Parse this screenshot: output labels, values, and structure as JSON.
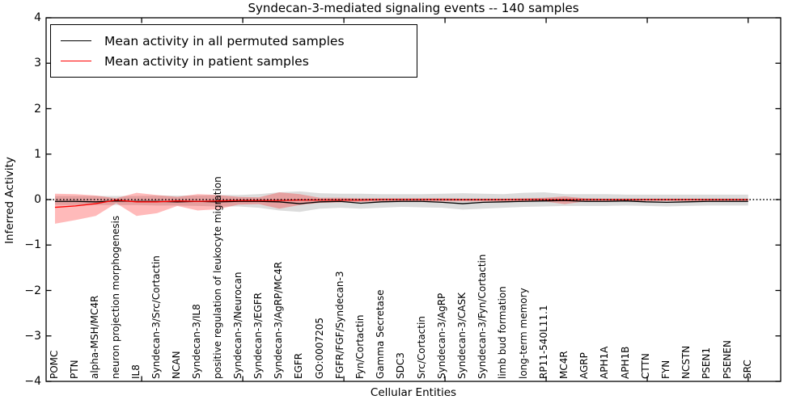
{
  "chart_data": {
    "type": "line",
    "title": "Syndecan-3-mediated signaling events -- 140 samples",
    "xlabel": "Cellular Entities",
    "ylabel": "Inferred Activity",
    "ylim": [
      -4,
      4
    ],
    "yticks": [
      4,
      3,
      2,
      1,
      0,
      -1,
      -2,
      -3,
      -4
    ],
    "grid": false,
    "legend_position": "upper-left",
    "categories": [
      "POMC",
      "PTN",
      "alpha-MSH/MC4R",
      "neuron projection morphogenesis",
      "IL8",
      "Syndecan-3/Src/Cortactin",
      "NCAN",
      "Syndecan-3/IL8",
      "positive regulation of leukocyte migration",
      "Syndecan-3/Neurocan",
      "Syndecan-3/EGFR",
      "Syndecan-3/AgRP/MC4R",
      "EGFR",
      "GO:0007205",
      "FGFR/FGF/Syndecan-3",
      "Fyn/Cortactin",
      "Gamma Secretase",
      "SDC3",
      "Src/Cortactin",
      "Syndecan-3/AgRP",
      "Syndecan-3/CASK",
      "Syndecan-3/Fyn/Cortactin",
      "limb bud formation",
      "long-term memory",
      "RP11-540L11.1",
      "MC4R",
      "AGRP",
      "APH1A",
      "APH1B",
      "CTTN",
      "FYN",
      "NCSTN",
      "PSEN1",
      "PSENEN",
      "SRC"
    ],
    "series": [
      {
        "name": "Mean activity in all permuted samples",
        "color": "#000000",
        "values": [
          -0.04,
          -0.04,
          -0.05,
          -0.03,
          -0.04,
          -0.04,
          -0.05,
          -0.04,
          -0.05,
          -0.04,
          -0.04,
          -0.05,
          -0.09,
          -0.05,
          -0.04,
          -0.08,
          -0.05,
          -0.04,
          -0.04,
          -0.06,
          -0.09,
          -0.06,
          -0.05,
          -0.04,
          -0.03,
          -0.02,
          -0.04,
          -0.04,
          -0.03,
          -0.05,
          -0.06,
          -0.05,
          -0.04,
          -0.04,
          -0.04
        ]
      },
      {
        "name": "Mean activity in patient samples",
        "color": "#ff0000",
        "values": [
          -0.17,
          -0.14,
          -0.09,
          -0.01,
          -0.05,
          -0.05,
          -0.03,
          -0.04,
          -0.03,
          -0.02,
          -0.02,
          -0.02,
          -0.01,
          -0.01,
          -0.01,
          -0.01,
          0,
          0,
          0,
          0,
          0,
          0,
          0,
          0,
          0,
          0,
          0,
          0,
          0,
          0,
          0,
          0,
          0,
          0,
          0
        ]
      }
    ],
    "bands": [
      {
        "name": "permuted-samples-spread",
        "color": "#808080",
        "opacity": 0.28,
        "upper": [
          0.08,
          0.08,
          0.08,
          0.08,
          0.08,
          0.09,
          0.09,
          0.09,
          0.1,
          0.1,
          0.12,
          0.16,
          0.18,
          0.14,
          0.13,
          0.13,
          0.12,
          0.12,
          0.12,
          0.13,
          0.14,
          0.13,
          0.12,
          0.15,
          0.16,
          0.12,
          0.12,
          0.12,
          0.11,
          0.11,
          0.11,
          0.11,
          0.11,
          0.11,
          0.11
        ],
        "lower": [
          -0.12,
          -0.12,
          -0.12,
          -0.12,
          -0.12,
          -0.13,
          -0.13,
          -0.14,
          -0.15,
          -0.15,
          -0.18,
          -0.24,
          -0.27,
          -0.2,
          -0.18,
          -0.2,
          -0.18,
          -0.16,
          -0.17,
          -0.18,
          -0.22,
          -0.2,
          -0.18,
          -0.16,
          -0.15,
          -0.14,
          -0.14,
          -0.14,
          -0.13,
          -0.14,
          -0.15,
          -0.14,
          -0.13,
          -0.13,
          -0.13
        ]
      },
      {
        "name": "patient-samples-spread",
        "color": "#ff0000",
        "opacity": 0.27,
        "upper": [
          0.13,
          0.12,
          0.09,
          0.03,
          0.15,
          0.1,
          0.06,
          0.12,
          0.1,
          0.06,
          0.05,
          0.16,
          0.12,
          0.04,
          0.04,
          0.03,
          0.03,
          0.03,
          0.03,
          0.03,
          0.02,
          0.02,
          0.02,
          0.03,
          0.04,
          0.07,
          0.03,
          0.02,
          0.02,
          0.02,
          0.02,
          0.02,
          0.02,
          0.02,
          0.02
        ],
        "lower": [
          -0.53,
          -0.45,
          -0.36,
          -0.08,
          -0.36,
          -0.3,
          -0.14,
          -0.24,
          -0.21,
          -0.11,
          -0.1,
          -0.2,
          -0.12,
          -0.07,
          -0.06,
          -0.05,
          -0.04,
          -0.04,
          -0.04,
          -0.04,
          -0.04,
          -0.04,
          -0.04,
          -0.04,
          -0.04,
          -0.1,
          -0.04,
          -0.03,
          -0.03,
          -0.03,
          -0.03,
          -0.03,
          -0.03,
          -0.03,
          -0.03
        ]
      }
    ],
    "zero_line": {
      "y": 0,
      "style": "dotted",
      "color": "#000000"
    },
    "xtick_index_positions": [
      4.25,
      9.21,
      14.17,
      19.13,
      24.09,
      29.05,
      34.0
    ]
  },
  "legend": {
    "entries": [
      {
        "label": "Mean activity in all permuted samples",
        "color": "#000000"
      },
      {
        "label": "Mean activity in patient samples",
        "color": "#ff0000"
      }
    ]
  }
}
